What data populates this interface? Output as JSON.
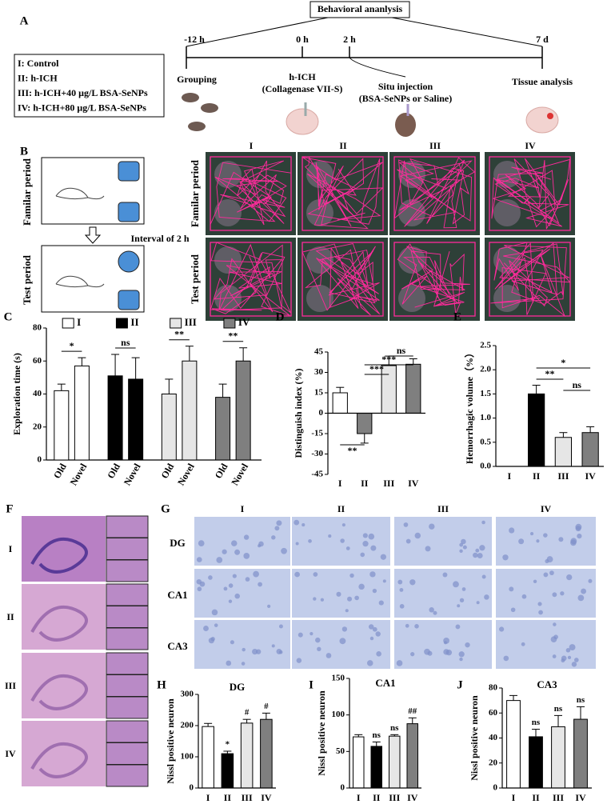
{
  "panel_a": {
    "label": "A",
    "box_title": "Behavioral ananlysis",
    "times": [
      "-12 h",
      "0 h",
      "2 h",
      "7 d"
    ],
    "groups": [
      "I: Control",
      "II: h-ICH",
      "III: h-ICH+40 μg/L BSA-SeNPs",
      "IV: h-ICH+80 μg/L BSA-SeNPs"
    ],
    "steps": [
      {
        "lines": [
          "Grouping"
        ]
      },
      {
        "lines": [
          "h-ICH",
          "(Collagenase VII-S)"
        ]
      },
      {
        "lines": [
          "Situ injection",
          "(BSA-SeNPs or Saline)"
        ]
      },
      {
        "lines": [
          "Tissue analysis"
        ]
      }
    ]
  },
  "panel_b": {
    "label": "B",
    "periods": [
      "Familar period",
      "Test  period"
    ],
    "interval": "Interval of 2 h",
    "columns": [
      "I",
      "II",
      "III",
      "IV"
    ]
  },
  "panel_f": {
    "label": "F",
    "rows": [
      "I",
      "II",
      "III",
      "IV"
    ]
  },
  "panel_g": {
    "label": "G",
    "columns": [
      "I",
      "II",
      "III",
      "IV"
    ],
    "rows": [
      "DG",
      "CA1",
      "CA3"
    ]
  },
  "chart_data": [
    {
      "type": "grouped_bar",
      "panel_label": "C",
      "ylabel": "Exploration time (s)",
      "categories": [
        "Old",
        "Novel"
      ],
      "series": [
        {
          "name": "I",
          "color": "#ffffff",
          "values": [
            42,
            57
          ],
          "errors": [
            4,
            5
          ]
        },
        {
          "name": "II",
          "color": "#000000",
          "values": [
            51,
            49
          ],
          "errors": [
            13,
            13
          ]
        },
        {
          "name": "III",
          "color": "#e6e6e6",
          "values": [
            40,
            60
          ],
          "errors": [
            9,
            9
          ]
        },
        {
          "name": "IV",
          "color": "#7f7f7f",
          "values": [
            38,
            60
          ],
          "errors": [
            8,
            8
          ]
        }
      ],
      "annotations": [
        "*",
        "ns",
        "**",
        "**"
      ],
      "ylim": [
        0,
        80
      ],
      "yticks": [
        0,
        20,
        40,
        60,
        80
      ]
    },
    {
      "type": "bar",
      "panel_label": "D",
      "ylabel": "Distinguish index (%)",
      "categories": [
        "I",
        "II",
        "III",
        "IV"
      ],
      "values": [
        15,
        -15,
        35,
        36
      ],
      "errors": [
        4,
        7,
        7,
        4
      ],
      "colors": [
        "#ffffff",
        "#808080",
        "#e6e6e6",
        "#7f7f7f"
      ],
      "annotations": [
        "**",
        "***",
        "***",
        "ns"
      ],
      "ylim": [
        -45,
        45
      ],
      "yticks": [
        -45,
        -30,
        -15,
        0,
        15,
        30,
        45
      ]
    },
    {
      "type": "bar",
      "panel_label": "E",
      "ylabel": "Hemorrhagic volume（%）",
      "categories": [
        "I",
        "II",
        "III",
        "IV"
      ],
      "values": [
        0,
        1.5,
        0.6,
        0.7
      ],
      "errors": [
        0,
        0.18,
        0.1,
        0.12
      ],
      "colors": [
        "#ffffff",
        "#000000",
        "#e6e6e6",
        "#7f7f7f"
      ],
      "annotations": [
        "*",
        "**",
        "ns"
      ],
      "ylim": [
        0,
        2.5
      ],
      "yticks": [
        {
          "value": 0,
          "label": "0.0"
        },
        {
          "value": 0.5,
          "label": "0.5"
        },
        {
          "value": 1,
          "label": "1.0"
        },
        {
          "value": 1.5,
          "label": "1.5"
        },
        {
          "value": 2,
          "label": "2.0"
        },
        {
          "value": 2.5,
          "label": "2.5"
        }
      ]
    },
    {
      "type": "bar",
      "panel_label": "H",
      "title": "DG",
      "ylabel": "Nissl positive neuron",
      "categories": [
        "I",
        "II",
        "III",
        "IV"
      ],
      "values": [
        197,
        110,
        208,
        220
      ],
      "errors": [
        10,
        8,
        12,
        20
      ],
      "colors": [
        "#ffffff",
        "#000000",
        "#e6e6e6",
        "#7f7f7f"
      ],
      "bar_labels": [
        null,
        "*",
        "#",
        "#"
      ],
      "ylim": [
        0,
        300
      ],
      "yticks": [
        0,
        100,
        200,
        300
      ]
    },
    {
      "type": "bar",
      "panel_label": "I",
      "title": "CA1",
      "ylabel": "Nissl positive neuron",
      "categories": [
        "I",
        "II",
        "III",
        "IV"
      ],
      "values": [
        70,
        57,
        71,
        88
      ],
      "errors": [
        3,
        6,
        2,
        8
      ],
      "colors": [
        "#ffffff",
        "#000000",
        "#e6e6e6",
        "#7f7f7f"
      ],
      "bar_labels": [
        null,
        "ns",
        "ns",
        "##"
      ],
      "ylim": [
        0,
        150
      ],
      "yticks": [
        0,
        50,
        100,
        150
      ]
    },
    {
      "type": "bar",
      "panel_label": "J",
      "title": "CA3",
      "ylabel": "Nissl positive neuron",
      "categories": [
        "I",
        "II",
        "III",
        "IV"
      ],
      "values": [
        70,
        41,
        49,
        55
      ],
      "errors": [
        4,
        6,
        9,
        10
      ],
      "colors": [
        "#ffffff",
        "#000000",
        "#e6e6e6",
        "#7f7f7f"
      ],
      "bar_labels": [
        null,
        "ns",
        "ns",
        "ns"
      ],
      "ylim": [
        0,
        80
      ],
      "yticks": [
        0,
        20,
        40,
        60,
        80
      ]
    }
  ]
}
